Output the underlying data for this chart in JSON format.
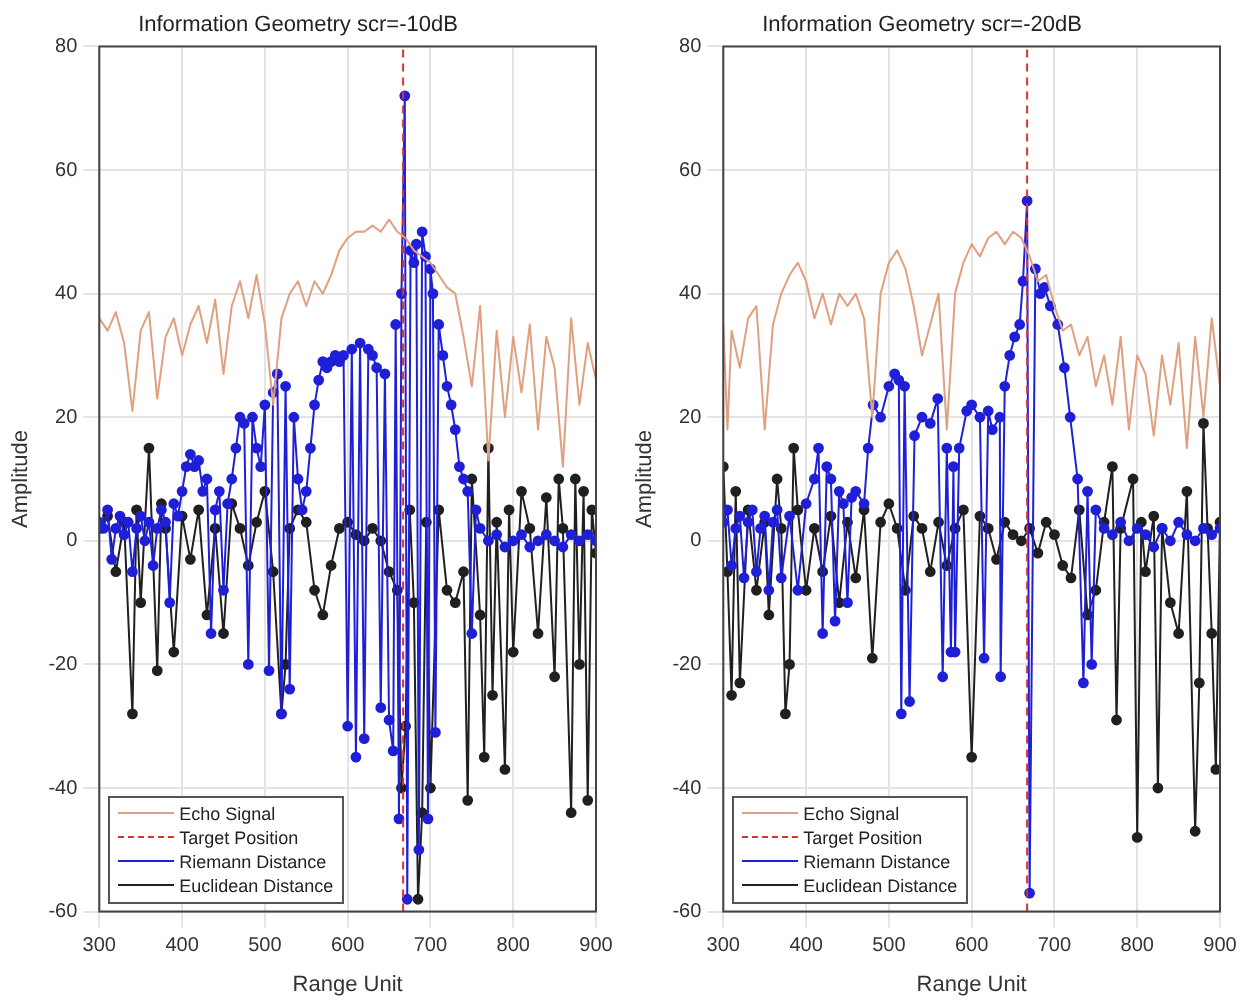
{
  "chart_data": [
    {
      "type": "line",
      "title": "Information Geometry scr=-10dB",
      "xlabel": "Range Unit",
      "ylabel": "Amplitude",
      "xlim": [
        300,
        900
      ],
      "ylim": [
        -60,
        80
      ],
      "xticks": [
        300,
        400,
        500,
        600,
        700,
        800,
        900
      ],
      "yticks": [
        -60,
        -40,
        -20,
        0,
        20,
        40,
        60,
        80
      ],
      "grid": true,
      "legend": "bottom left",
      "series": [
        {
          "name": "Echo Signal",
          "color": "#e0a080",
          "marker": "none",
          "line_style": "solid",
          "x": [
            300,
            310,
            320,
            330,
            340,
            350,
            360,
            370,
            380,
            390,
            400,
            410,
            420,
            430,
            440,
            450,
            460,
            470,
            480,
            490,
            500,
            510,
            520,
            530,
            540,
            550,
            560,
            570,
            580,
            590,
            600,
            610,
            620,
            630,
            640,
            650,
            660,
            670,
            680,
            690,
            700,
            710,
            720,
            730,
            740,
            750,
            760,
            770,
            780,
            790,
            800,
            810,
            820,
            830,
            840,
            850,
            860,
            870,
            880,
            890,
            900
          ],
          "values": [
            36,
            34,
            37,
            32,
            21,
            34,
            37,
            23,
            33,
            36,
            30,
            35,
            38,
            32,
            39,
            27,
            38,
            42,
            36,
            43,
            35,
            22,
            36,
            40,
            42,
            38,
            42,
            40,
            43,
            47,
            49,
            50,
            50,
            51,
            50,
            52,
            50,
            49,
            47,
            46,
            45,
            43,
            41,
            40,
            33,
            25,
            38,
            13,
            34,
            20,
            33,
            24,
            35,
            18,
            33,
            28,
            12,
            36,
            22,
            32,
            26
          ]
        },
        {
          "name": "Target Position",
          "color": "#e03030",
          "marker": "none",
          "line_style": "dashed",
          "x": [
            667,
            667
          ],
          "values": [
            -60,
            80
          ]
        },
        {
          "name": "Riemann Distance",
          "color": "#1f1fd8",
          "marker": "circle",
          "line_style": "solid",
          "x": [
            300,
            305,
            310,
            315,
            320,
            325,
            330,
            335,
            340,
            345,
            350,
            355,
            360,
            365,
            370,
            375,
            380,
            385,
            390,
            395,
            400,
            405,
            410,
            415,
            420,
            425,
            430,
            435,
            440,
            445,
            450,
            455,
            460,
            465,
            470,
            475,
            480,
            485,
            490,
            495,
            500,
            505,
            510,
            515,
            520,
            525,
            530,
            535,
            540,
            545,
            550,
            555,
            560,
            565,
            570,
            575,
            580,
            585,
            590,
            595,
            600,
            605,
            610,
            615,
            620,
            625,
            630,
            635,
            640,
            645,
            650,
            655,
            658,
            662,
            665,
            669,
            672,
            676,
            680,
            683,
            686,
            690,
            694,
            697,
            700,
            703,
            706,
            710,
            715,
            720,
            725,
            730,
            735,
            740,
            745,
            750,
            755,
            760,
            770,
            780,
            790,
            800,
            810,
            820,
            830,
            840,
            850,
            860,
            870,
            880,
            890,
            900
          ],
          "values": [
            3,
            2,
            5,
            -3,
            2,
            4,
            1,
            3,
            -5,
            2,
            4,
            0,
            3,
            -4,
            2,
            5,
            3,
            -10,
            6,
            4,
            8,
            12,
            14,
            12,
            13,
            8,
            10,
            -15,
            5,
            8,
            -8,
            6,
            10,
            15,
            20,
            19,
            -20,
            20,
            15,
            12,
            22,
            -21,
            24,
            27,
            -28,
            25,
            -24,
            20,
            10,
            5,
            8,
            15,
            22,
            26,
            29,
            28,
            29,
            30,
            29,
            30,
            -30,
            31,
            -35,
            32,
            -32,
            31,
            30,
            28,
            -27,
            27,
            -29,
            -34,
            35,
            -45,
            40,
            72,
            -58,
            47,
            45,
            48,
            -50,
            50,
            46,
            -45,
            44,
            40,
            -31,
            35,
            30,
            25,
            22,
            18,
            12,
            10,
            8,
            -15,
            5,
            2,
            0,
            1,
            -1,
            0,
            1,
            -1,
            0,
            1,
            0,
            -1,
            1,
            0,
            1,
            0
          ]
        },
        {
          "name": "Euclidean Distance",
          "color": "#202020",
          "marker": "circle",
          "line_style": "solid",
          "x": [
            300,
            310,
            320,
            330,
            340,
            345,
            350,
            360,
            370,
            375,
            380,
            390,
            400,
            410,
            420,
            430,
            440,
            450,
            460,
            470,
            480,
            490,
            500,
            510,
            520,
            525,
            530,
            540,
            550,
            560,
            570,
            580,
            590,
            600,
            610,
            620,
            630,
            640,
            650,
            660,
            665,
            670,
            675,
            680,
            685,
            690,
            695,
            700,
            710,
            720,
            730,
            740,
            745,
            750,
            760,
            765,
            770,
            775,
            780,
            790,
            795,
            800,
            810,
            820,
            830,
            840,
            850,
            855,
            860,
            870,
            875,
            880,
            885,
            890,
            895,
            900
          ],
          "values": [
            2,
            4,
            -5,
            3,
            -28,
            5,
            -10,
            15,
            -21,
            6,
            2,
            -18,
            4,
            -3,
            5,
            -12,
            2,
            -15,
            6,
            2,
            -4,
            3,
            8,
            -5,
            -28,
            -20,
            2,
            5,
            3,
            -8,
            -12,
            -4,
            2,
            3,
            1,
            0,
            2,
            0,
            -5,
            -8,
            -40,
            -30,
            5,
            -10,
            -58,
            -44,
            3,
            -40,
            5,
            -8,
            -10,
            -5,
            -42,
            10,
            -12,
            -35,
            15,
            -25,
            3,
            -37,
            5,
            -18,
            8,
            2,
            -15,
            7,
            -22,
            10,
            2,
            -44,
            10,
            -20,
            8,
            -42,
            5,
            -2
          ]
        }
      ]
    },
    {
      "type": "line",
      "title": "Information Geometry scr=-20dB",
      "xlabel": "Range Unit",
      "ylabel": "Amplitude",
      "xlim": [
        300,
        900
      ],
      "ylim": [
        -60,
        80
      ],
      "xticks": [
        300,
        400,
        500,
        600,
        700,
        800,
        900
      ],
      "yticks": [
        -60,
        -40,
        -20,
        0,
        20,
        40,
        60,
        80
      ],
      "grid": true,
      "legend": "bottom left",
      "series": [
        {
          "name": "Echo Signal",
          "color": "#e0a080",
          "marker": "none",
          "line_style": "solid",
          "x": [
            300,
            305,
            310,
            320,
            330,
            340,
            350,
            360,
            370,
            380,
            390,
            400,
            410,
            420,
            430,
            440,
            450,
            460,
            470,
            480,
            490,
            500,
            510,
            520,
            530,
            540,
            550,
            560,
            570,
            580,
            590,
            600,
            610,
            620,
            630,
            640,
            650,
            660,
            670,
            680,
            690,
            700,
            710,
            720,
            730,
            740,
            750,
            760,
            770,
            780,
            790,
            800,
            810,
            820,
            830,
            840,
            850,
            860,
            870,
            880,
            890,
            900
          ],
          "values": [
            35,
            18,
            34,
            28,
            36,
            38,
            18,
            35,
            40,
            43,
            45,
            42,
            36,
            40,
            35,
            40,
            38,
            40,
            36,
            20,
            40,
            45,
            47,
            44,
            38,
            30,
            35,
            40,
            18,
            40,
            45,
            48,
            46,
            49,
            50,
            48,
            50,
            49,
            46,
            42,
            43,
            38,
            34,
            35,
            30,
            33,
            25,
            30,
            22,
            33,
            18,
            30,
            27,
            17,
            30,
            22,
            32,
            15,
            33,
            20,
            36,
            25
          ]
        },
        {
          "name": "Target Position",
          "color": "#e03030",
          "marker": "none",
          "line_style": "dashed",
          "x": [
            667,
            667
          ],
          "values": [
            -60,
            80
          ]
        },
        {
          "name": "Riemann Distance",
          "color": "#1f1fd8",
          "marker": "circle",
          "line_style": "solid",
          "x": [
            300,
            305,
            310,
            315,
            320,
            325,
            330,
            335,
            340,
            345,
            350,
            355,
            360,
            365,
            370,
            380,
            390,
            400,
            410,
            415,
            420,
            425,
            430,
            435,
            440,
            445,
            450,
            455,
            460,
            470,
            475,
            481,
            490,
            500,
            507,
            512,
            515,
            519,
            525,
            531,
            540,
            550,
            559,
            565,
            570,
            575,
            578,
            580,
            585,
            594,
            600,
            610,
            615,
            620,
            625,
            634,
            635,
            640,
            646,
            652,
            658,
            662,
            667,
            670,
            677,
            683,
            688,
            695,
            704,
            712,
            719,
            728,
            735,
            740,
            745,
            750,
            760,
            770,
            780,
            790,
            800,
            810,
            820,
            830,
            840,
            850,
            860,
            870,
            880,
            890,
            900
          ],
          "values": [
            3,
            5,
            -4,
            2,
            4,
            -6,
            3,
            5,
            -5,
            2,
            4,
            -8,
            3,
            5,
            -6,
            4,
            -8,
            6,
            10,
            15,
            -15,
            12,
            10,
            -13,
            8,
            6,
            -10,
            7,
            8,
            6,
            15,
            22,
            20,
            25,
            27,
            26,
            -28,
            25,
            -26,
            17,
            20,
            19,
            23,
            -22,
            15,
            -18,
            12,
            -18,
            15,
            21,
            22,
            20,
            -19,
            21,
            18,
            20,
            -22,
            25,
            30,
            33,
            35,
            42,
            55,
            -57,
            44,
            40,
            41,
            38,
            35,
            28,
            20,
            10,
            -23,
            8,
            -20,
            5,
            2,
            1,
            3,
            0,
            2,
            1,
            -1,
            2,
            0,
            3,
            1,
            0,
            2,
            1,
            2
          ]
        },
        {
          "name": "Euclidean Distance",
          "color": "#202020",
          "marker": "circle",
          "line_style": "solid",
          "x": [
            300,
            305,
            310,
            315,
            320,
            330,
            340,
            350,
            355,
            365,
            370,
            375,
            380,
            385,
            390,
            400,
            410,
            420,
            430,
            440,
            450,
            460,
            470,
            480,
            490,
            500,
            510,
            520,
            530,
            540,
            550,
            560,
            570,
            580,
            590,
            600,
            610,
            620,
            630,
            640,
            650,
            660,
            670,
            680,
            690,
            700,
            710,
            720,
            730,
            740,
            750,
            760,
            770,
            775,
            780,
            795,
            800,
            805,
            810,
            820,
            825,
            830,
            840,
            850,
            860,
            870,
            875,
            880,
            885,
            890,
            895,
            900
          ],
          "values": [
            12,
            -5,
            -25,
            8,
            -23,
            5,
            -8,
            3,
            -12,
            10,
            2,
            -28,
            -20,
            15,
            5,
            -8,
            2,
            -5,
            4,
            -10,
            3,
            -6,
            5,
            -19,
            3,
            6,
            2,
            -8,
            4,
            2,
            -5,
            3,
            -4,
            2,
            5,
            -35,
            4,
            2,
            -3,
            3,
            1,
            0,
            2,
            -2,
            3,
            1,
            -4,
            -6,
            5,
            -12,
            -8,
            3,
            12,
            -29,
            2,
            10,
            -48,
            3,
            -5,
            4,
            -40,
            2,
            -10,
            -15,
            8,
            -47,
            -23,
            19,
            2,
            -15,
            -37,
            3
          ]
        }
      ]
    }
  ]
}
